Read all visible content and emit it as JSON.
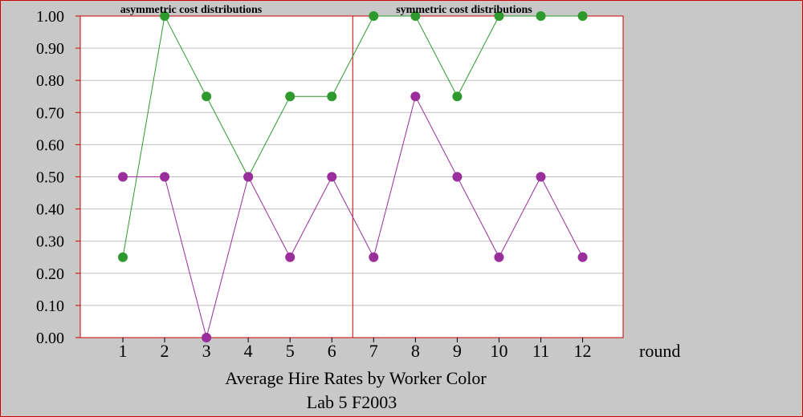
{
  "chart_data": {
    "type": "line",
    "title": "Average Hire Rates by Worker Color",
    "subtitle": "Lab 5 F2003",
    "xlabel": "round",
    "ylabel": "",
    "categories": [
      "1",
      "2",
      "3",
      "4",
      "5",
      "6",
      "7",
      "8",
      "9",
      "10",
      "11",
      "12"
    ],
    "ylim": [
      0,
      1
    ],
    "yticks": [
      "0.00",
      "0.10",
      "0.20",
      "0.30",
      "0.40",
      "0.50",
      "0.60",
      "0.70",
      "0.80",
      "0.90",
      "1.00"
    ],
    "grid": true,
    "legend": "none",
    "divider_after_category": 6,
    "annotations": [
      "asymmetric cost distributions",
      "symmetric cost distributions"
    ],
    "series": [
      {
        "color": "#2e9a2e",
        "values": [
          0.25,
          1.0,
          0.75,
          0.5,
          0.75,
          0.75,
          1.0,
          1.0,
          0.75,
          1.0,
          1.0,
          1.0
        ]
      },
      {
        "color": "#9a2e9a",
        "values": [
          0.5,
          0.5,
          0.0,
          0.5,
          0.25,
          0.5,
          0.25,
          0.75,
          0.5,
          0.25,
          0.5,
          0.25
        ]
      }
    ],
    "colors": {
      "plot_background": "#ffffff",
      "outer_background": "#c8c8c8",
      "frame": "#cc0000",
      "gridline": "#c0c0c0"
    }
  }
}
